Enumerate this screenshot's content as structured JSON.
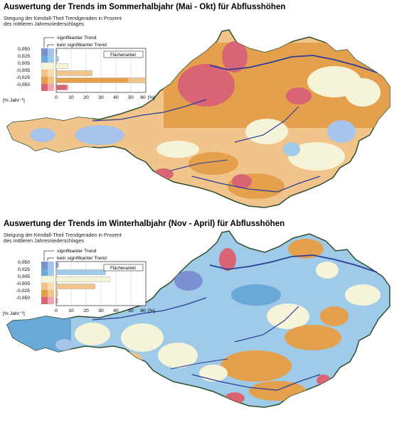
{
  "legend": {
    "y_ticks": [
      "0,050",
      "0,025",
      "0,005",
      "-0,005",
      "-0,025",
      "-0,050"
    ],
    "y_unit": "[% Jahr⁻¹]",
    "x_ticks": [
      "0",
      "10",
      "20",
      "30",
      "40",
      "50",
      "60"
    ],
    "x_unit": "[%]",
    "area_label": "Flächenanteil",
    "sig_label": "signifikanter Trend",
    "nonsig_label": "kein signifikanter Trend"
  },
  "colors": {
    "blue_sig": "#7b8fd1",
    "blue_nonsig": "#a9c4ea",
    "lightblue": "#9fcbe8",
    "neutral": "#f5f3d8",
    "orange": "#e4a04c",
    "orange_light": "#f0c48a",
    "red_sig": "#d86474",
    "red_nonsig": "#f0a6ae",
    "river": "#2c3d9a",
    "border": "#2e4e30"
  },
  "panels": [
    {
      "title": "Auswertung der Trends im Sommerhalbjahr (Mai - Okt) für Abflusshöhen",
      "subtitle_line1": "Steigung der Kendall-Theil Trendgeraden in Prozent",
      "subtitle_line2": "des mittleren Jahresniederschlages",
      "bars": [
        0.5,
        1.5,
        8,
        24,
        60,
        8
      ],
      "bars_sig": [
        0.5,
        0.5,
        1,
        0,
        48,
        7
      ]
    },
    {
      "title": "Auswertung der Trends im Winterhalbjahr (Nov - April) für Abflusshöhen",
      "subtitle_line1": "Steigung der Kendall-Theil Trendgeraden in Prozent",
      "subtitle_line2": "des mittleren Jahresniederschlages",
      "bars": [
        1.5,
        33,
        36,
        26,
        1,
        1
      ],
      "bars_sig": [
        1,
        8,
        0,
        0,
        0,
        0.5
      ]
    }
  ]
}
